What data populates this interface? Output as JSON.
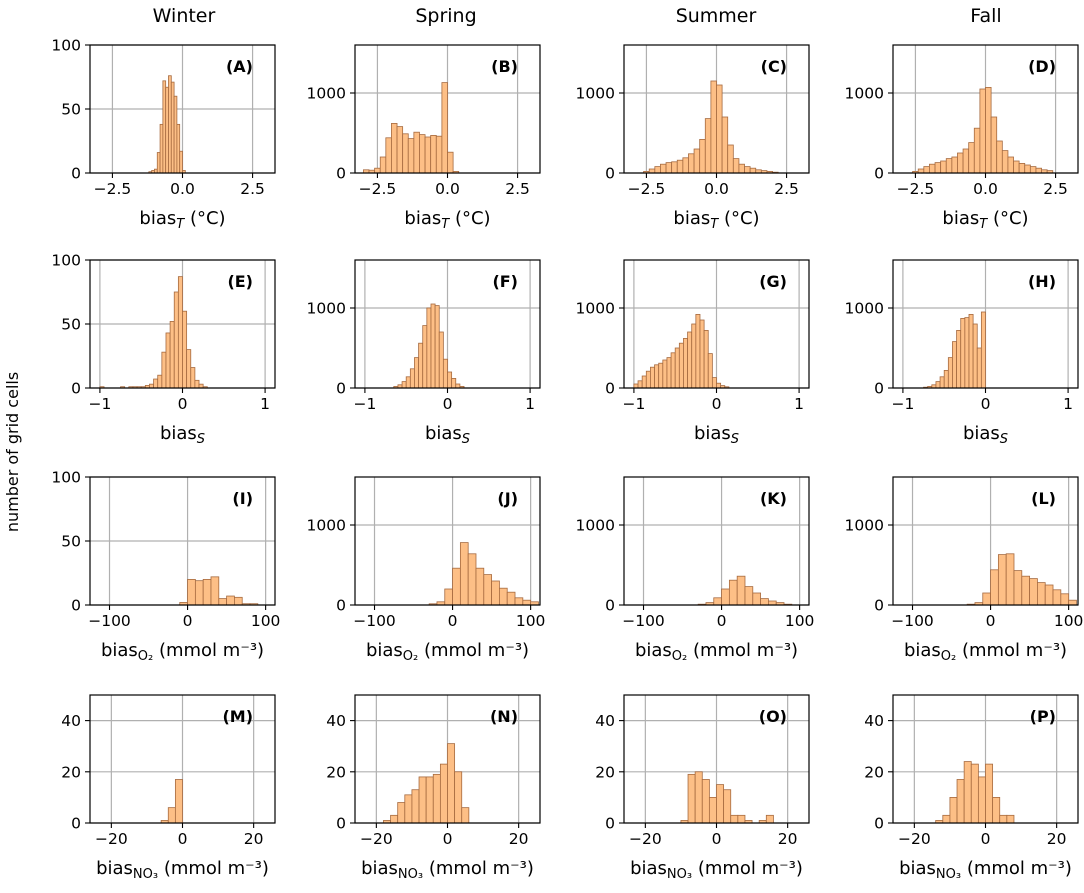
{
  "ylabel": "number of grid cells",
  "columns": [
    "Winter",
    "Spring",
    "Summer",
    "Fall"
  ],
  "colors": {
    "bar_fill": "#fdbf86",
    "bar_edge": "#a66a3f",
    "grid": "#b0b0b0"
  },
  "rows": [
    {
      "variable": "T",
      "xlabel": {
        "base": "bias",
        "sub": "T",
        "unit": "(°C)"
      },
      "xlim": [
        -3.3,
        3.3
      ],
      "xticks": [
        -2.5,
        0,
        2.5
      ],
      "xtick_labels": [
        "−2.5",
        "0.0",
        "2.5"
      ]
    },
    {
      "variable": "S",
      "xlabel": {
        "base": "bias",
        "sub": "S",
        "unit": ""
      },
      "xlim": [
        -1.12,
        1.12
      ],
      "xticks": [
        -1,
        0,
        1
      ],
      "xtick_labels": [
        "−1",
        "0",
        "1"
      ]
    },
    {
      "variable": "O2",
      "xlabel": {
        "base": "bias",
        "sub": "O₂",
        "unit": "(mmol m⁻³)"
      },
      "xlim": [
        -125,
        112
      ],
      "xticks": [
        -100,
        0,
        100
      ],
      "xtick_labels": [
        "−100",
        "0",
        "100"
      ]
    },
    {
      "variable": "NO3",
      "xlabel": {
        "base": "bias",
        "sub": "NO₃",
        "unit": "(mmol m⁻³)"
      },
      "xlim": [
        -26,
        26
      ],
      "xticks": [
        -20,
        0,
        20
      ],
      "xtick_labels": [
        "−20",
        "0",
        "20"
      ]
    }
  ],
  "chart_data": [
    {
      "type": "bar",
      "panel": "(A)",
      "season": "Winter",
      "row": 0,
      "ylim": [
        0,
        100
      ],
      "yticks": [
        0,
        50,
        100
      ],
      "ytick_labels": [
        "0",
        "50",
        "100"
      ],
      "bin_edges": [
        -1.2,
        -1.1,
        -1.0,
        -0.9,
        -0.8,
        -0.7,
        -0.6,
        -0.5,
        -0.4,
        -0.3,
        -0.2,
        -0.1,
        0.0,
        0.1,
        0.2
      ],
      "counts": [
        1,
        2,
        3,
        16,
        38,
        72,
        67,
        76,
        71,
        60,
        38,
        17,
        2,
        0
      ]
    },
    {
      "type": "bar",
      "panel": "(B)",
      "season": "Spring",
      "row": 0,
      "ylim": [
        0,
        1600
      ],
      "yticks": [
        0,
        1000
      ],
      "ytick_labels": [
        "0",
        "1000"
      ],
      "bin_edges": [
        -3.0,
        -2.8,
        -2.6,
        -2.4,
        -2.2,
        -2.0,
        -1.8,
        -1.6,
        -1.4,
        -1.2,
        -1.0,
        -0.8,
        -0.6,
        -0.4,
        -0.2,
        0.0,
        0.2,
        0.4
      ],
      "counts": [
        40,
        35,
        60,
        200,
        440,
        620,
        580,
        490,
        430,
        510,
        480,
        450,
        470,
        460,
        1130,
        260,
        20
      ]
    },
    {
      "type": "bar",
      "panel": "(C)",
      "season": "Summer",
      "row": 0,
      "ylim": [
        0,
        1600
      ],
      "yticks": [
        0,
        1000
      ],
      "ytick_labels": [
        "0",
        "1000"
      ],
      "bin_edges": [
        -2.6,
        -2.4,
        -2.2,
        -2.0,
        -1.8,
        -1.6,
        -1.4,
        -1.2,
        -1.0,
        -0.8,
        -0.6,
        -0.4,
        -0.2,
        0.0,
        0.2,
        0.4,
        0.6,
        0.8,
        1.0,
        1.2,
        1.4,
        1.6,
        1.8,
        2.0,
        2.2
      ],
      "counts": [
        20,
        50,
        80,
        110,
        130,
        140,
        160,
        190,
        240,
        300,
        420,
        680,
        1150,
        1100,
        700,
        350,
        180,
        110,
        80,
        60,
        40,
        30,
        20,
        10
      ]
    },
    {
      "type": "bar",
      "panel": "(D)",
      "season": "Fall",
      "row": 0,
      "ylim": [
        0,
        1600
      ],
      "yticks": [
        0,
        1000
      ],
      "ytick_labels": [
        "0",
        "1000"
      ],
      "bin_edges": [
        -2.6,
        -2.4,
        -2.2,
        -2.0,
        -1.8,
        -1.6,
        -1.4,
        -1.2,
        -1.0,
        -0.8,
        -0.6,
        -0.4,
        -0.2,
        0.0,
        0.2,
        0.4,
        0.6,
        0.8,
        1.0,
        1.2,
        1.4,
        1.6,
        1.8,
        2.0,
        2.2,
        2.4
      ],
      "counts": [
        20,
        50,
        80,
        110,
        130,
        150,
        180,
        200,
        250,
        300,
        380,
        560,
        1050,
        1070,
        700,
        400,
        280,
        200,
        150,
        120,
        100,
        80,
        60,
        40,
        30
      ]
    },
    {
      "type": "bar",
      "panel": "(E)",
      "season": "Winter",
      "row": 1,
      "ylim": [
        0,
        100
      ],
      "yticks": [
        0,
        50,
        100
      ],
      "ytick_labels": [
        "0",
        "50",
        "100"
      ],
      "bin_edges": [
        -1.0,
        -0.95,
        -0.9,
        -0.85,
        -0.8,
        -0.75,
        -0.7,
        -0.65,
        -0.6,
        -0.55,
        -0.5,
        -0.45,
        -0.4,
        -0.35,
        -0.3,
        -0.25,
        -0.2,
        -0.15,
        -0.1,
        -0.05,
        0.0,
        0.05,
        0.1,
        0.15,
        0.2,
        0.25,
        0.3
      ],
      "counts": [
        1,
        0,
        0,
        0,
        0,
        1,
        0,
        1,
        1,
        1,
        1,
        2,
        3,
        7,
        10,
        28,
        43,
        52,
        75,
        87,
        60,
        30,
        16,
        6,
        3,
        1
      ]
    },
    {
      "type": "bar",
      "panel": "(F)",
      "season": "Spring",
      "row": 1,
      "ylim": [
        0,
        1600
      ],
      "yticks": [
        0,
        1000
      ],
      "ytick_labels": [
        "0",
        "1000"
      ],
      "bin_edges": [
        -0.65,
        -0.6,
        -0.55,
        -0.5,
        -0.45,
        -0.4,
        -0.35,
        -0.3,
        -0.25,
        -0.2,
        -0.15,
        -0.1,
        -0.05,
        0.0,
        0.05,
        0.1,
        0.15,
        0.2
      ],
      "counts": [
        20,
        40,
        80,
        140,
        240,
        380,
        560,
        780,
        1000,
        1050,
        1030,
        700,
        360,
        200,
        120,
        50,
        20
      ]
    },
    {
      "type": "bar",
      "panel": "(G)",
      "season": "Summer",
      "row": 1,
      "ylim": [
        0,
        1600
      ],
      "yticks": [
        0,
        1000
      ],
      "ytick_labels": [
        "0",
        "1000"
      ],
      "bin_edges": [
        -1.0,
        -0.95,
        -0.9,
        -0.85,
        -0.8,
        -0.75,
        -0.7,
        -0.65,
        -0.6,
        -0.55,
        -0.5,
        -0.45,
        -0.4,
        -0.35,
        -0.3,
        -0.25,
        -0.2,
        -0.15,
        -0.1,
        -0.05,
        0.0,
        0.05,
        0.1,
        0.15
      ],
      "counts": [
        50,
        90,
        150,
        210,
        260,
        290,
        310,
        350,
        380,
        440,
        500,
        560,
        620,
        700,
        800,
        920,
        850,
        720,
        430,
        130,
        60,
        30,
        15
      ]
    },
    {
      "type": "bar",
      "panel": "(H)",
      "season": "Fall",
      "row": 1,
      "ylim": [
        0,
        1600
      ],
      "yticks": [
        0,
        1000
      ],
      "ytick_labels": [
        "0",
        "1000"
      ],
      "bin_edges": [
        -0.75,
        -0.7,
        -0.65,
        -0.6,
        -0.55,
        -0.5,
        -0.45,
        -0.4,
        -0.35,
        -0.3,
        -0.25,
        -0.2,
        -0.15,
        -0.1,
        -0.05,
        0.0
      ],
      "counts": [
        10,
        20,
        40,
        80,
        140,
        220,
        380,
        580,
        720,
        870,
        880,
        920,
        800,
        500,
        950
      ]
    },
    {
      "type": "bar",
      "panel": "(I)",
      "season": "Winter",
      "row": 2,
      "ylim": [
        0,
        100
      ],
      "yticks": [
        0,
        50,
        100
      ],
      "ytick_labels": [
        "0",
        "50",
        "100"
      ],
      "bin_edges": [
        -10,
        0,
        10,
        20,
        30,
        40,
        50,
        60,
        70,
        80,
        90
      ],
      "counts": [
        2,
        20,
        19,
        20,
        22,
        5,
        7,
        6,
        1,
        1
      ]
    },
    {
      "type": "bar",
      "panel": "(J)",
      "season": "Spring",
      "row": 2,
      "ylim": [
        0,
        1600
      ],
      "yticks": [
        0,
        1000
      ],
      "ytick_labels": [
        "0",
        "1000"
      ],
      "bin_edges": [
        -30,
        -20,
        -10,
        0,
        10,
        20,
        30,
        40,
        50,
        60,
        70,
        80,
        90,
        100,
        110
      ],
      "counts": [
        15,
        40,
        200,
        460,
        780,
        640,
        460,
        380,
        300,
        210,
        160,
        90,
        60,
        40
      ]
    },
    {
      "type": "bar",
      "panel": "(K)",
      "season": "Summer",
      "row": 2,
      "ylim": [
        0,
        1600
      ],
      "yticks": [
        0,
        1000
      ],
      "ytick_labels": [
        "0",
        "1000"
      ],
      "bin_edges": [
        -30,
        -20,
        -10,
        0,
        10,
        20,
        30,
        40,
        50,
        60,
        70,
        80,
        90
      ],
      "counts": [
        10,
        30,
        90,
        200,
        310,
        360,
        230,
        150,
        80,
        50,
        30,
        10
      ]
    },
    {
      "type": "bar",
      "panel": "(L)",
      "season": "Fall",
      "row": 2,
      "ylim": [
        0,
        1600
      ],
      "yticks": [
        0,
        1000
      ],
      "ytick_labels": [
        "0",
        "1000"
      ],
      "bin_edges": [
        -30,
        -20,
        -10,
        0,
        10,
        20,
        30,
        40,
        50,
        60,
        70,
        80,
        90,
        100,
        110
      ],
      "counts": [
        10,
        30,
        150,
        440,
        630,
        640,
        430,
        360,
        330,
        280,
        250,
        190,
        140,
        60
      ]
    },
    {
      "type": "bar",
      "panel": "(M)",
      "season": "Winter",
      "row": 3,
      "ylim": [
        0,
        50
      ],
      "yticks": [
        0,
        20,
        40
      ],
      "ytick_labels": [
        "0",
        "20",
        "40"
      ],
      "bin_edges": [
        -6,
        -4,
        -2,
        0
      ],
      "counts": [
        1,
        6,
        17
      ]
    },
    {
      "type": "bar",
      "panel": "(N)",
      "season": "Spring",
      "row": 3,
      "ylim": [
        0,
        50
      ],
      "yticks": [
        0,
        20,
        40
      ],
      "ytick_labels": [
        "0",
        "20",
        "40"
      ],
      "bin_edges": [
        -18,
        -16,
        -14,
        -12,
        -10,
        -8,
        -6,
        -4,
        -2,
        0,
        2,
        4,
        6
      ],
      "counts": [
        1,
        3,
        8,
        11,
        13,
        18,
        18,
        19,
        23,
        31,
        20,
        6
      ]
    },
    {
      "type": "bar",
      "panel": "(O)",
      "season": "Summer",
      "row": 3,
      "ylim": [
        0,
        50
      ],
      "yticks": [
        0,
        20,
        40
      ],
      "ytick_labels": [
        "0",
        "20",
        "40"
      ],
      "bin_edges": [
        -10,
        -8,
        -6,
        -4,
        -2,
        0,
        2,
        4,
        6,
        8,
        10,
        12,
        14,
        16
      ],
      "counts": [
        1,
        19,
        20,
        17,
        10,
        15,
        13,
        3,
        3,
        1,
        0,
        1,
        3
      ]
    },
    {
      "type": "bar",
      "panel": "(P)",
      "season": "Fall",
      "row": 3,
      "ylim": [
        0,
        50
      ],
      "yticks": [
        0,
        20,
        40
      ],
      "ytick_labels": [
        "0",
        "20",
        "40"
      ],
      "bin_edges": [
        -14,
        -12,
        -10,
        -8,
        -6,
        -4,
        -2,
        0,
        2,
        4,
        6,
        8
      ],
      "counts": [
        1,
        3,
        10,
        17,
        24,
        23,
        18,
        23,
        10,
        3,
        3
      ]
    }
  ]
}
